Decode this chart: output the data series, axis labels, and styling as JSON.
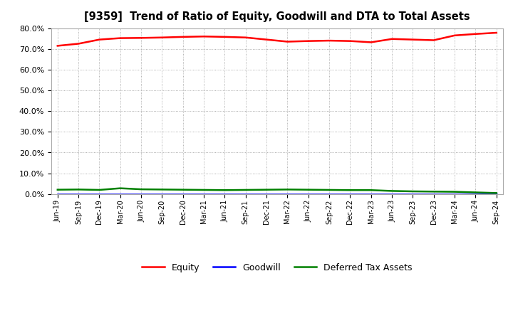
{
  "title": "[9359]  Trend of Ratio of Equity, Goodwill and DTA to Total Assets",
  "x_labels": [
    "Jun-19",
    "Sep-19",
    "Dec-19",
    "Mar-20",
    "Jun-20",
    "Sep-20",
    "Dec-20",
    "Mar-21",
    "Jun-21",
    "Sep-21",
    "Dec-21",
    "Mar-22",
    "Jun-22",
    "Sep-22",
    "Dec-22",
    "Mar-23",
    "Jun-23",
    "Sep-23",
    "Dec-23",
    "Mar-24",
    "Jun-24",
    "Sep-24"
  ],
  "equity": [
    71.5,
    72.5,
    74.5,
    75.2,
    75.3,
    75.5,
    75.8,
    76.0,
    75.8,
    75.5,
    74.5,
    73.5,
    73.8,
    74.0,
    73.8,
    73.2,
    74.8,
    74.5,
    74.2,
    76.5,
    77.2,
    77.8
  ],
  "goodwill": [
    0.0,
    0.0,
    0.0,
    0.0,
    0.0,
    0.0,
    0.0,
    0.0,
    0.0,
    0.0,
    0.0,
    0.0,
    0.0,
    0.0,
    0.0,
    0.0,
    0.0,
    0.0,
    0.0,
    0.0,
    0.0,
    0.0
  ],
  "dta": [
    2.1,
    2.2,
    2.0,
    2.8,
    2.3,
    2.2,
    2.1,
    2.0,
    1.9,
    2.0,
    2.1,
    2.2,
    2.1,
    2.0,
    1.9,
    1.9,
    1.5,
    1.3,
    1.2,
    1.1,
    0.8,
    0.5
  ],
  "equity_color": "#FF0000",
  "goodwill_color": "#0000FF",
  "dta_color": "#008000",
  "ylim": [
    0,
    80
  ],
  "yticks": [
    0,
    10,
    20,
    30,
    40,
    50,
    60,
    70,
    80
  ],
  "background_color": "#FFFFFF",
  "plot_bg_color": "#FFFFFF",
  "grid_color": "#999999",
  "legend_labels": [
    "Equity",
    "Goodwill",
    "Deferred Tax Assets"
  ]
}
